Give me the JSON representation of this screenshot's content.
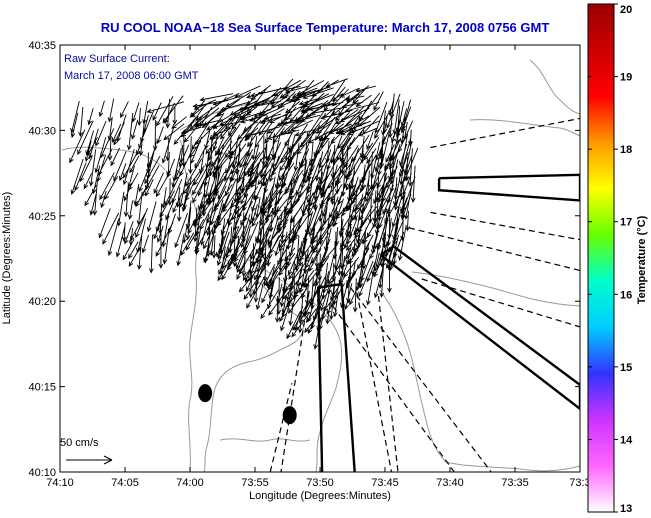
{
  "chart_data": {
    "type": "scatter",
    "title": "RU COOL  NOAA−18  Sea Surface Temperature:  March 17, 2008 0756 GMT",
    "xlabel": "Longitude (Degrees:Minutes)",
    "ylabel": "Latitude (Degrees:Minutes)",
    "xlim": [
      -74.1667,
      -73.5
    ],
    "ylim": [
      40.1667,
      40.5833
    ],
    "x_ticks": [
      {
        "value": -74.1667,
        "label": "74:10"
      },
      {
        "value": -74.0833,
        "label": "74:05"
      },
      {
        "value": -74.0,
        "label": "74:00"
      },
      {
        "value": -73.9167,
        "label": "73:55"
      },
      {
        "value": -73.8333,
        "label": "73:50"
      },
      {
        "value": -73.75,
        "label": "73:45"
      },
      {
        "value": -73.6667,
        "label": "73:40"
      },
      {
        "value": -73.5833,
        "label": "73:35"
      },
      {
        "value": -73.5,
        "label": "73:3"
      }
    ],
    "y_ticks": [
      {
        "value": 40.1667,
        "label": "40:10"
      },
      {
        "value": 40.25,
        "label": "40:15"
      },
      {
        "value": 40.3333,
        "label": "40:20"
      },
      {
        "value": 40.4167,
        "label": "40:25"
      },
      {
        "value": 40.5,
        "label": "40:30"
      },
      {
        "value": 40.5833,
        "label": "40:35"
      }
    ],
    "annotation_line1": "Raw Surface Current:",
    "annotation_line2": "March 17, 2008 06:00 GMT",
    "scale_label": "50 cm/s",
    "colorbar": {
      "label": "Temperature (°C)",
      "min": 13,
      "max": 20,
      "ticks": [
        {
          "value": 13,
          "label": "13"
        },
        {
          "value": 14,
          "label": "14"
        },
        {
          "value": 15,
          "label": "15"
        },
        {
          "value": 16,
          "label": "16"
        },
        {
          "value": 17,
          "label": "17"
        },
        {
          "value": 18,
          "label": "18"
        },
        {
          "value": 19,
          "label": "19"
        },
        {
          "value": 20,
          "label": "20"
        }
      ],
      "color_stops": [
        "#ffffff",
        "#ff66ff",
        "#cc33ff",
        "#3333ff",
        "#00ccff",
        "#00ffcc",
        "#66ff00",
        "#ffff00",
        "#ff9900",
        "#ff0000",
        "#cc0000",
        "#990000"
      ]
    },
    "markers": [
      {
        "name": "buoy-west",
        "lon": -73.9806,
        "lat": 40.2436
      },
      {
        "name": "buoy-east",
        "lon": -73.8722,
        "lat": 40.2222
      }
    ],
    "shipping_lanes": [
      {
        "name": "lane-east-bar",
        "points": [
          [
            -73.6806,
            40.4533
          ],
          [
            -73.5,
            40.4567
          ],
          [
            -73.5,
            40.4317
          ],
          [
            -73.6806,
            40.4416
          ],
          [
            -73.6806,
            40.4533
          ]
        ]
      },
      {
        "name": "lane-southeast-bar",
        "points": [
          [
            -73.7556,
            40.3783
          ],
          [
            -73.7389,
            40.3867
          ],
          [
            -73.5,
            40.2517
          ],
          [
            -73.5,
            40.2283
          ],
          [
            -73.7556,
            40.3783
          ]
        ]
      },
      {
        "name": "lane-south-bar",
        "points": [
          [
            -73.8306,
            40.1667
          ],
          [
            -73.8356,
            40.3467
          ],
          [
            -73.8056,
            40.35
          ],
          [
            -73.7889,
            40.1667
          ]
        ]
      }
    ],
    "dashed_lines": [
      {
        "points": [
          [
            -73.6917,
            40.4833
          ],
          [
            -73.5,
            40.5117
          ]
        ]
      },
      {
        "points": [
          [
            -73.6917,
            40.42
          ],
          [
            -73.5,
            40.3933
          ]
        ]
      },
      {
        "points": [
          [
            -73.7194,
            40.405
          ],
          [
            -73.5,
            40.3633
          ]
        ]
      },
      {
        "points": [
          [
            -73.7028,
            40.355
          ],
          [
            -73.5,
            40.3083
          ]
        ]
      },
      {
        "points": [
          [
            -73.7944,
            40.3467
          ],
          [
            -73.6139,
            40.1667
          ]
        ]
      },
      {
        "points": [
          [
            -73.8167,
            40.3283
          ],
          [
            -73.6611,
            40.1667
          ]
        ]
      },
      {
        "points": [
          [
            -73.8472,
            40.3433
          ],
          [
            -73.8833,
            40.1667
          ]
        ]
      },
      {
        "points": [
          [
            -73.7861,
            40.3417
          ],
          [
            -73.7417,
            40.1667
          ]
        ]
      },
      {
        "points": [
          [
            -73.8972,
            40.1667
          ],
          [
            -73.8694,
            40.2533
          ]
        ]
      },
      {
        "points": [
          [
            -73.7583,
            40.3383
          ],
          [
            -73.7333,
            40.1667
          ]
        ]
      }
    ],
    "current_field": {
      "description": "raw surface current vectors (~50 cm/s reference), predominantly south / southwest",
      "lon_range": [
        -74.1306,
        -73.7556
      ],
      "lat_range": [
        40.325,
        40.5133
      ],
      "mean_heading_deg": 200
    }
  }
}
